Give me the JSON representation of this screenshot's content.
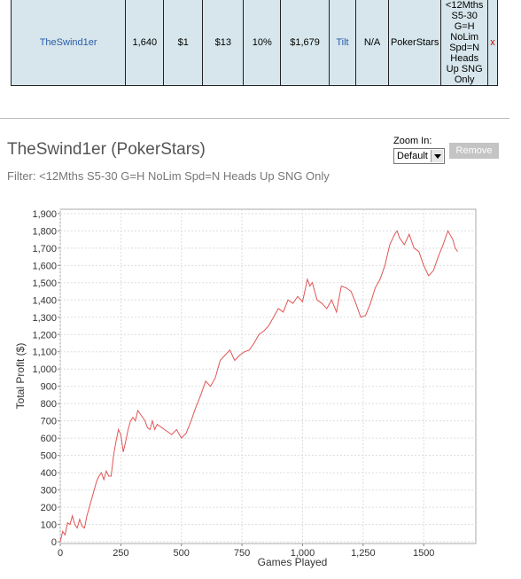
{
  "table": {
    "rows": [
      [
        "TheSwind1er",
        "1,640",
        "$1",
        "$13",
        "10%",
        "$1,679",
        "Tilt",
        "N/A",
        "PokerStars",
        "<12Mths S5-30 G=H NoLim Spd=N Heads Up SNG Only",
        "x"
      ]
    ]
  },
  "panel": {
    "title": "TheSwind1er (PokerStars)",
    "filter": "Filter: <12Mths S5-30 G=H NoLim Spd=N Heads Up SNG Only",
    "zoom_label": "Zoom In:",
    "zoom_value": "Default",
    "button": "Remove"
  },
  "chart_data": {
    "type": "line",
    "xlabel": "Games Played",
    "ylabel": "Total Profit ($)",
    "color": "#e05555",
    "grid": true,
    "x": [
      0,
      10,
      20,
      30,
      40,
      50,
      60,
      70,
      80,
      90,
      100,
      110,
      120,
      130,
      140,
      150,
      160,
      170,
      180,
      190,
      200,
      210,
      220,
      230,
      240,
      250,
      260,
      270,
      280,
      290,
      300,
      310,
      320,
      330,
      340,
      350,
      360,
      370,
      380,
      390,
      400,
      420,
      440,
      460,
      480,
      500,
      520,
      540,
      560,
      580,
      600,
      620,
      640,
      660,
      680,
      700,
      720,
      740,
      760,
      780,
      800,
      820,
      840,
      860,
      880,
      900,
      920,
      940,
      960,
      980,
      1000,
      1020,
      1030,
      1040,
      1060,
      1080,
      1100,
      1120,
      1140,
      1160,
      1180,
      1200,
      1220,
      1240,
      1260,
      1280,
      1300,
      1320,
      1340,
      1360,
      1380,
      1390,
      1400,
      1420,
      1440,
      1460,
      1480,
      1500,
      1520,
      1540,
      1560,
      1580,
      1600,
      1620,
      1630,
      1640
    ],
    "values": [
      0,
      60,
      40,
      110,
      100,
      150,
      100,
      80,
      130,
      90,
      80,
      150,
      200,
      250,
      300,
      350,
      380,
      400,
      360,
      410,
      380,
      380,
      500,
      580,
      650,
      620,
      520,
      580,
      650,
      700,
      720,
      700,
      760,
      740,
      720,
      700,
      660,
      650,
      700,
      650,
      680,
      660,
      640,
      620,
      650,
      600,
      630,
      700,
      780,
      850,
      930,
      900,
      950,
      1050,
      1080,
      1110,
      1050,
      1080,
      1100,
      1110,
      1150,
      1200,
      1220,
      1250,
      1300,
      1350,
      1330,
      1400,
      1380,
      1420,
      1390,
      1520,
      1480,
      1500,
      1400,
      1380,
      1350,
      1400,
      1330,
      1480,
      1470,
      1450,
      1380,
      1300,
      1310,
      1380,
      1470,
      1520,
      1600,
      1720,
      1780,
      1800,
      1760,
      1720,
      1780,
      1700,
      1680,
      1600,
      1540,
      1570,
      1650,
      1720,
      1800,
      1750,
      1700,
      1680
    ],
    "xlim": [
      0,
      1715
    ],
    "ylim": [
      -10,
      1925
    ],
    "xticks": [
      0,
      250,
      500,
      750,
      {
        "value": 1000,
        "label": "1,000"
      },
      {
        "value": 1250,
        "label": "1,250"
      },
      1500
    ],
    "yticks": [
      0,
      100,
      200,
      300,
      400,
      500,
      600,
      700,
      800,
      900,
      {
        "value": 1000,
        "label": "1,000"
      },
      {
        "value": 1100,
        "label": "1,100"
      },
      {
        "value": 1200,
        "label": "1,200"
      },
      {
        "value": 1300,
        "label": "1,300"
      },
      {
        "value": 1400,
        "label": "1,400"
      },
      {
        "value": 1500,
        "label": "1,500"
      },
      {
        "value": 1600,
        "label": "1,600"
      },
      {
        "value": 1700,
        "label": "1,700"
      },
      {
        "value": 1800,
        "label": "1,800"
      },
      {
        "value": 1900,
        "label": "1,900"
      }
    ]
  }
}
